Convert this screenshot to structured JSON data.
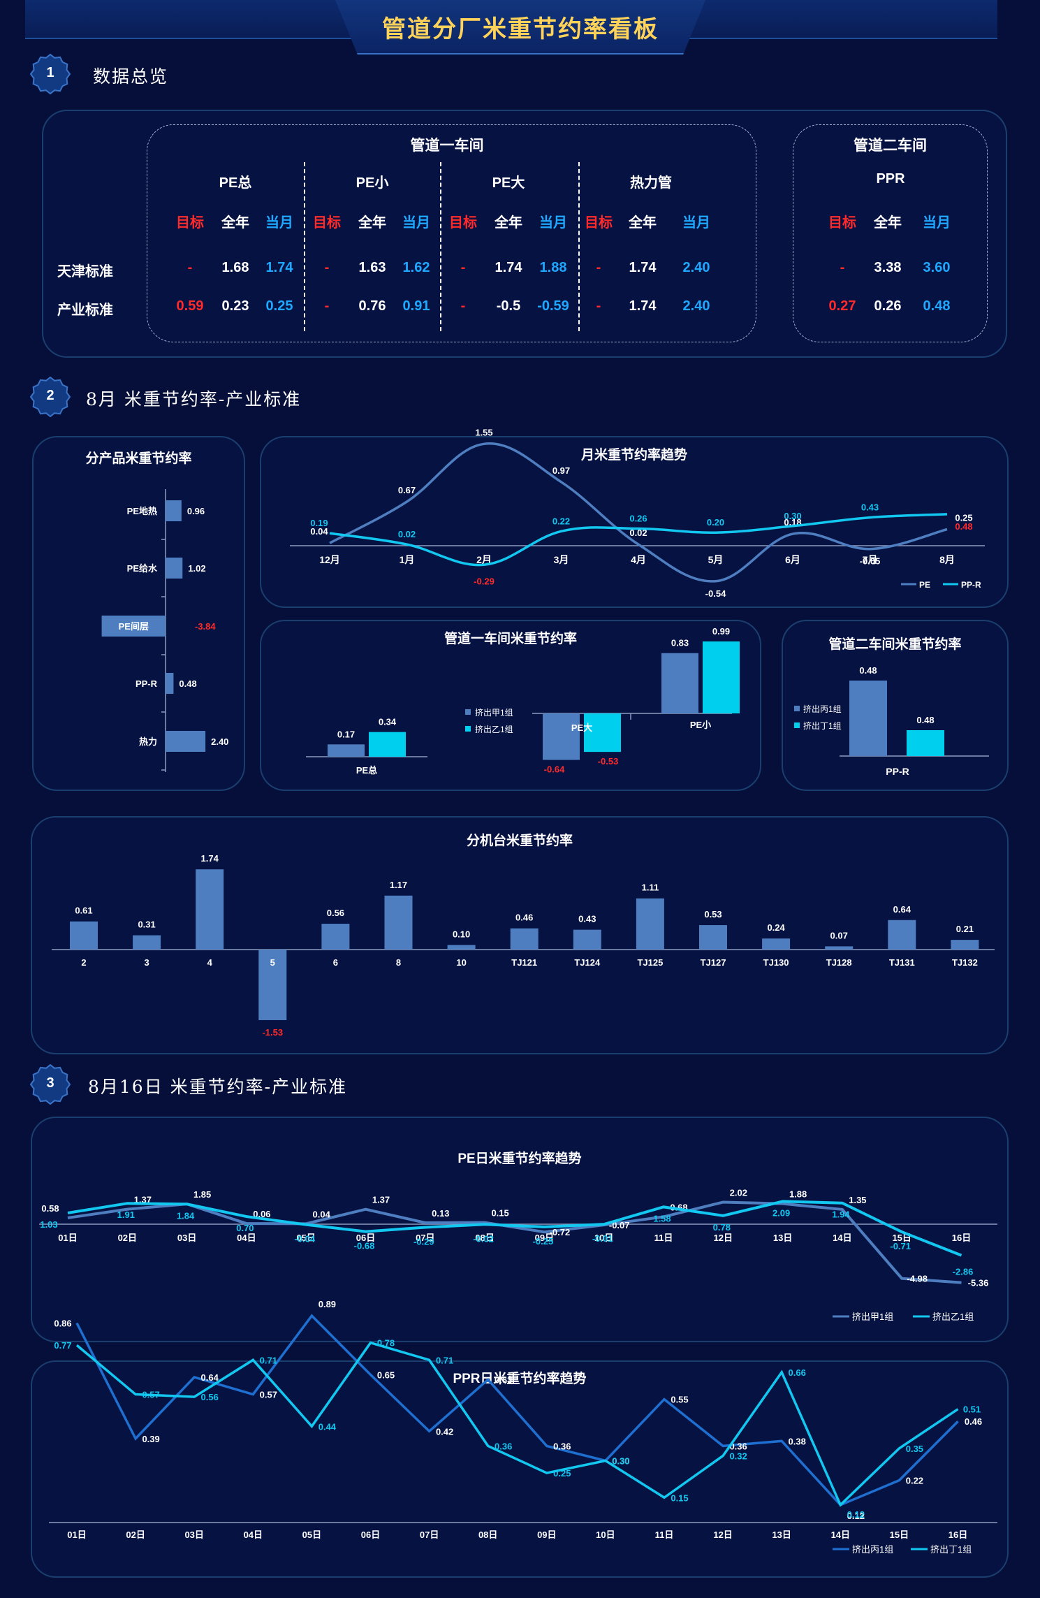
{
  "header": {
    "title": "管道分厂米重节约率看板"
  },
  "sections": [
    {
      "num": "1",
      "title": "数据总览"
    },
    {
      "num": "2",
      "title": "8月 米重节约率-产业标准"
    },
    {
      "num": "3",
      "title": "8月16日 米重节约率-产业标准"
    }
  ],
  "overview": {
    "workshop1": "管道一车间",
    "workshop2": "管道二车间",
    "groups": [
      {
        "name": "PE总",
        "tianjin": [
          "-",
          "1.68",
          "1.74"
        ],
        "industry": [
          "0.59",
          "0.23",
          "0.25"
        ]
      },
      {
        "name": "PE小",
        "tianjin": [
          "-",
          "1.63",
          "1.62"
        ],
        "industry": [
          "-",
          "0.76",
          "0.91"
        ]
      },
      {
        "name": "PE大",
        "tianjin": [
          "-",
          "1.74",
          "1.88"
        ],
        "industry": [
          "-",
          "-0.5",
          "-0.59"
        ]
      },
      {
        "name": "热力管",
        "tianjin": [
          "-",
          "1.74",
          "2.40"
        ],
        "industry": [
          "-",
          "1.74",
          "2.40"
        ]
      },
      {
        "name": "PPR",
        "tianjin": [
          "-",
          "3.38",
          "3.60"
        ],
        "industry": [
          "0.27",
          "0.26",
          "0.48"
        ]
      }
    ],
    "col_labels": [
      "目标",
      "全年",
      "当月"
    ],
    "row_labels": [
      "天津标准",
      "产业标准"
    ]
  },
  "chart_data": [
    {
      "id": "product",
      "type": "bar",
      "orientation": "horizontal",
      "title": "分产品米重节约率",
      "categories": [
        "PE地热",
        "PE给水",
        "PE间层",
        "PP-R",
        "热力"
      ],
      "values": [
        0.96,
        1.02,
        -3.84,
        0.48,
        2.4
      ],
      "labels": [
        "0.96",
        "1.02",
        "-3.84",
        "0.48",
        "2.40"
      ],
      "color": "#4e7ec0"
    },
    {
      "id": "monthly",
      "type": "line",
      "title": "月米重节约率趋势",
      "categories": [
        "12月",
        "1月",
        "2月",
        "3月",
        "4月",
        "5月",
        "6月",
        "7月",
        "8月"
      ],
      "series": [
        {
          "name": "PE",
          "values": [
            0.04,
            0.67,
            1.55,
            0.97,
            0.02,
            -0.54,
            0.18,
            -0.05,
            0.25
          ],
          "labels": [
            "0.04",
            "0.67",
            "1.55",
            "0.97",
            "0.02",
            "-0.54",
            "0.18",
            "-0.05",
            "0.25"
          ],
          "color": "#4e7ec0"
        },
        {
          "name": "PP-R",
          "values": [
            0.19,
            0.02,
            -0.29,
            0.22,
            0.26,
            0.2,
            0.3,
            0.43,
            0.48
          ],
          "labels": [
            "0.19",
            "0.02",
            "-0.29",
            "0.22",
            "0.26",
            "0.20",
            "0.30",
            "0.43",
            "0.48"
          ],
          "color": "#12c8f0"
        }
      ]
    },
    {
      "id": "ws1",
      "type": "bar",
      "title": "管道一车间米重节约率",
      "categories": [
        "PE总",
        "PE大",
        "PE小"
      ],
      "series": [
        {
          "name": "挤出甲1组",
          "values": [
            0.17,
            -0.64,
            0.83
          ],
          "labels": [
            "0.17",
            "-0.64",
            "0.83"
          ],
          "color": "#4e7ec0"
        },
        {
          "name": "挤出乙1组",
          "values": [
            0.34,
            -0.53,
            0.99
          ],
          "labels": [
            "0.34",
            "-0.53",
            "0.99"
          ],
          "color": "#00cfee"
        }
      ]
    },
    {
      "id": "ws2",
      "type": "bar",
      "title": "管道二车间米重节约率",
      "categories": [
        "PP-R"
      ],
      "series": [
        {
          "name": "挤出丙1组",
          "values": [
            0.48
          ],
          "labels": [
            "0.48"
          ],
          "color": "#4e7ec0"
        },
        {
          "name": "挤出丁1组",
          "values": [
            0.48
          ],
          "labels": [
            "0.48"
          ],
          "color": "#00cfee"
        }
      ]
    },
    {
      "id": "machine",
      "type": "bar",
      "title": "分机台米重节约率",
      "categories": [
        "2",
        "3",
        "4",
        "5",
        "6",
        "8",
        "10",
        "TJ121",
        "TJ124",
        "TJ125",
        "TJ127",
        "TJ130",
        "TJ128",
        "TJ131",
        "TJ132"
      ],
      "values": [
        0.61,
        0.31,
        1.74,
        -1.53,
        0.56,
        1.17,
        0.1,
        0.46,
        0.43,
        1.11,
        0.53,
        0.24,
        0.07,
        0.64,
        0.21
      ],
      "labels": [
        "0.61",
        "0.31",
        "1.74",
        "-1.53",
        "0.56",
        "1.17",
        "0.10",
        "0.46",
        "0.43",
        "1.11",
        "0.53",
        "0.24",
        "0.07",
        "0.64",
        "0.21"
      ],
      "color": "#4e7ec0"
    },
    {
      "id": "pe_daily",
      "type": "line",
      "title": "PE日米重节约率趋势",
      "categories": [
        "01日",
        "02日",
        "03日",
        "04日",
        "05日",
        "06日",
        "07日",
        "08日",
        "09日",
        "10日",
        "11日",
        "12日",
        "13日",
        "14日",
        "15日",
        "16日"
      ],
      "series": [
        {
          "name": "挤出甲1组",
          "values": [
            0.58,
            1.37,
            1.85,
            0.06,
            0.04,
            1.37,
            0.13,
            0.15,
            -0.72,
            -0.07,
            0.68,
            2.02,
            1.88,
            1.35,
            -4.98,
            -5.36
          ],
          "labels": [
            "0.58",
            "1.37",
            "1.85",
            "0.06",
            "0.04",
            "1.37",
            "0.13",
            "0.15",
            "-0.72",
            "-0.07",
            "0.68",
            "2.02",
            "1.88",
            "1.35",
            "-4.98",
            "-5.36"
          ],
          "color": "#4e7ec0"
        },
        {
          "name": "挤出乙1组",
          "values": [
            1.03,
            1.91,
            1.84,
            0.7,
            -0.04,
            -0.68,
            -0.29,
            -0.02,
            -0.25,
            -0.01,
            1.58,
            0.78,
            2.09,
            1.94,
            -0.71,
            -2.86
          ],
          "labels": [
            "1.03",
            "1.91",
            "1.84",
            "0.70",
            "-0.04",
            "-0.68",
            "-0.29",
            "-0.02",
            "-0.25",
            "-0.01",
            "1.58",
            "0.78",
            "2.09",
            "1.94",
            "-0.71",
            "-2.86"
          ],
          "color": "#12c8f0"
        }
      ]
    },
    {
      "id": "ppr_daily",
      "type": "line",
      "title": "PPR日米重节约率趋势",
      "categories": [
        "01日",
        "02日",
        "03日",
        "04日",
        "05日",
        "06日",
        "07日",
        "08日",
        "09日",
        "10日",
        "11日",
        "12日",
        "13日",
        "14日",
        "15日",
        "16日"
      ],
      "series": [
        {
          "name": "挤出丙1组",
          "values": [
            0.86,
            0.39,
            0.64,
            0.57,
            0.89,
            0.65,
            0.42,
            0.63,
            0.36,
            0.3,
            0.55,
            0.36,
            0.38,
            0.12,
            0.22,
            0.46
          ],
          "labels": [
            "0.86",
            "0.39",
            "0.64",
            "0.57",
            "0.89",
            "0.65",
            "0.42",
            "0.63",
            "0.36",
            "0.30",
            "0.55",
            "0.36",
            "0.38",
            "0.12",
            "0.22",
            "0.46"
          ],
          "color": "#1e6fd0"
        },
        {
          "name": "挤出丁1组",
          "values": [
            0.77,
            0.57,
            0.56,
            0.71,
            0.44,
            0.78,
            0.71,
            0.36,
            0.25,
            0.3,
            0.15,
            0.32,
            0.66,
            0.12,
            0.35,
            0.51
          ],
          "labels": [
            "0.77",
            "0.57",
            "0.56",
            "0.71",
            "0.44",
            "0.78",
            "0.71",
            "0.36",
            "0.25",
            "0.30",
            "0.15",
            "0.32",
            "0.66",
            "0.12",
            "0.35",
            "0.51"
          ],
          "color": "#12c8f0"
        }
      ]
    }
  ]
}
